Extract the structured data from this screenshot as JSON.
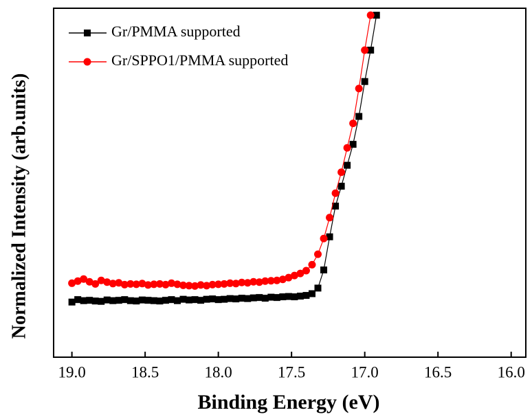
{
  "chart_data": {
    "type": "scatter",
    "x_label": "Binding Energy (eV)",
    "y_label": "Normalized Intensity (arb.units)",
    "x": [
      19.0,
      18.96,
      18.92,
      18.88,
      18.84,
      18.8,
      18.76,
      18.72,
      18.68,
      18.64,
      18.6,
      18.56,
      18.52,
      18.48,
      18.44,
      18.4,
      18.36,
      18.32,
      18.28,
      18.24,
      18.2,
      18.16,
      18.12,
      18.08,
      18.04,
      18.0,
      17.96,
      17.92,
      17.88,
      17.84,
      17.8,
      17.76,
      17.72,
      17.68,
      17.64,
      17.6,
      17.56,
      17.52,
      17.48,
      17.44,
      17.4,
      17.36,
      17.32,
      17.28,
      17.24,
      17.2,
      17.16,
      17.12,
      17.08,
      17.04,
      17.0,
      16.96,
      16.92
    ],
    "series": [
      {
        "name": "Gr/PMMA supported",
        "color": "#000000",
        "marker": "square",
        "values": [
          15.8,
          16.5,
          16.2,
          16.3,
          16.1,
          16.0,
          16.4,
          16.2,
          16.3,
          16.5,
          16.2,
          16.1,
          16.4,
          16.3,
          16.2,
          16.1,
          16.3,
          16.5,
          16.2,
          16.6,
          16.4,
          16.5,
          16.3,
          16.6,
          16.7,
          16.5,
          16.6,
          16.8,
          16.7,
          16.9,
          16.8,
          17.0,
          17.1,
          16.9,
          17.2,
          17.1,
          17.3,
          17.4,
          17.3,
          17.5,
          17.7,
          18.2,
          19.8,
          25,
          34.5,
          43.3,
          49,
          55,
          61,
          69,
          79,
          88,
          98
        ]
      },
      {
        "name": "Gr/SPPO1/PMMA supported",
        "color": "#ff0000",
        "marker": "circle",
        "values": [
          21.2,
          21.8,
          22.4,
          21.6,
          21.0,
          22.0,
          21.5,
          21.1,
          21.3,
          20.8,
          21.0,
          20.9,
          21.1,
          20.7,
          20.9,
          21.0,
          20.8,
          21.2,
          20.9,
          20.6,
          20.5,
          20.4,
          20.7,
          20.5,
          20.8,
          20.9,
          21.0,
          21.2,
          21.1,
          21.4,
          21.3,
          21.6,
          21.5,
          21.8,
          21.9,
          22.0,
          22.3,
          22.8,
          23.4,
          24.0,
          24.8,
          26.5,
          29.5,
          34,
          40,
          47,
          53,
          60,
          67,
          77,
          88,
          98,
          null
        ]
      }
    ],
    "xlim": [
      19.125,
      15.9
    ],
    "xticks": [
      {
        "value": 19.0,
        "label": "19.0"
      },
      18.5,
      {
        "value": 18.0,
        "label": "18.0"
      },
      17.5,
      {
        "value": 17.0,
        "label": "17.0"
      },
      16.5,
      {
        "value": 16.0,
        "label": "16.0"
      }
    ],
    "ylim": [
      0,
      100
    ],
    "legend": "upper left"
  }
}
